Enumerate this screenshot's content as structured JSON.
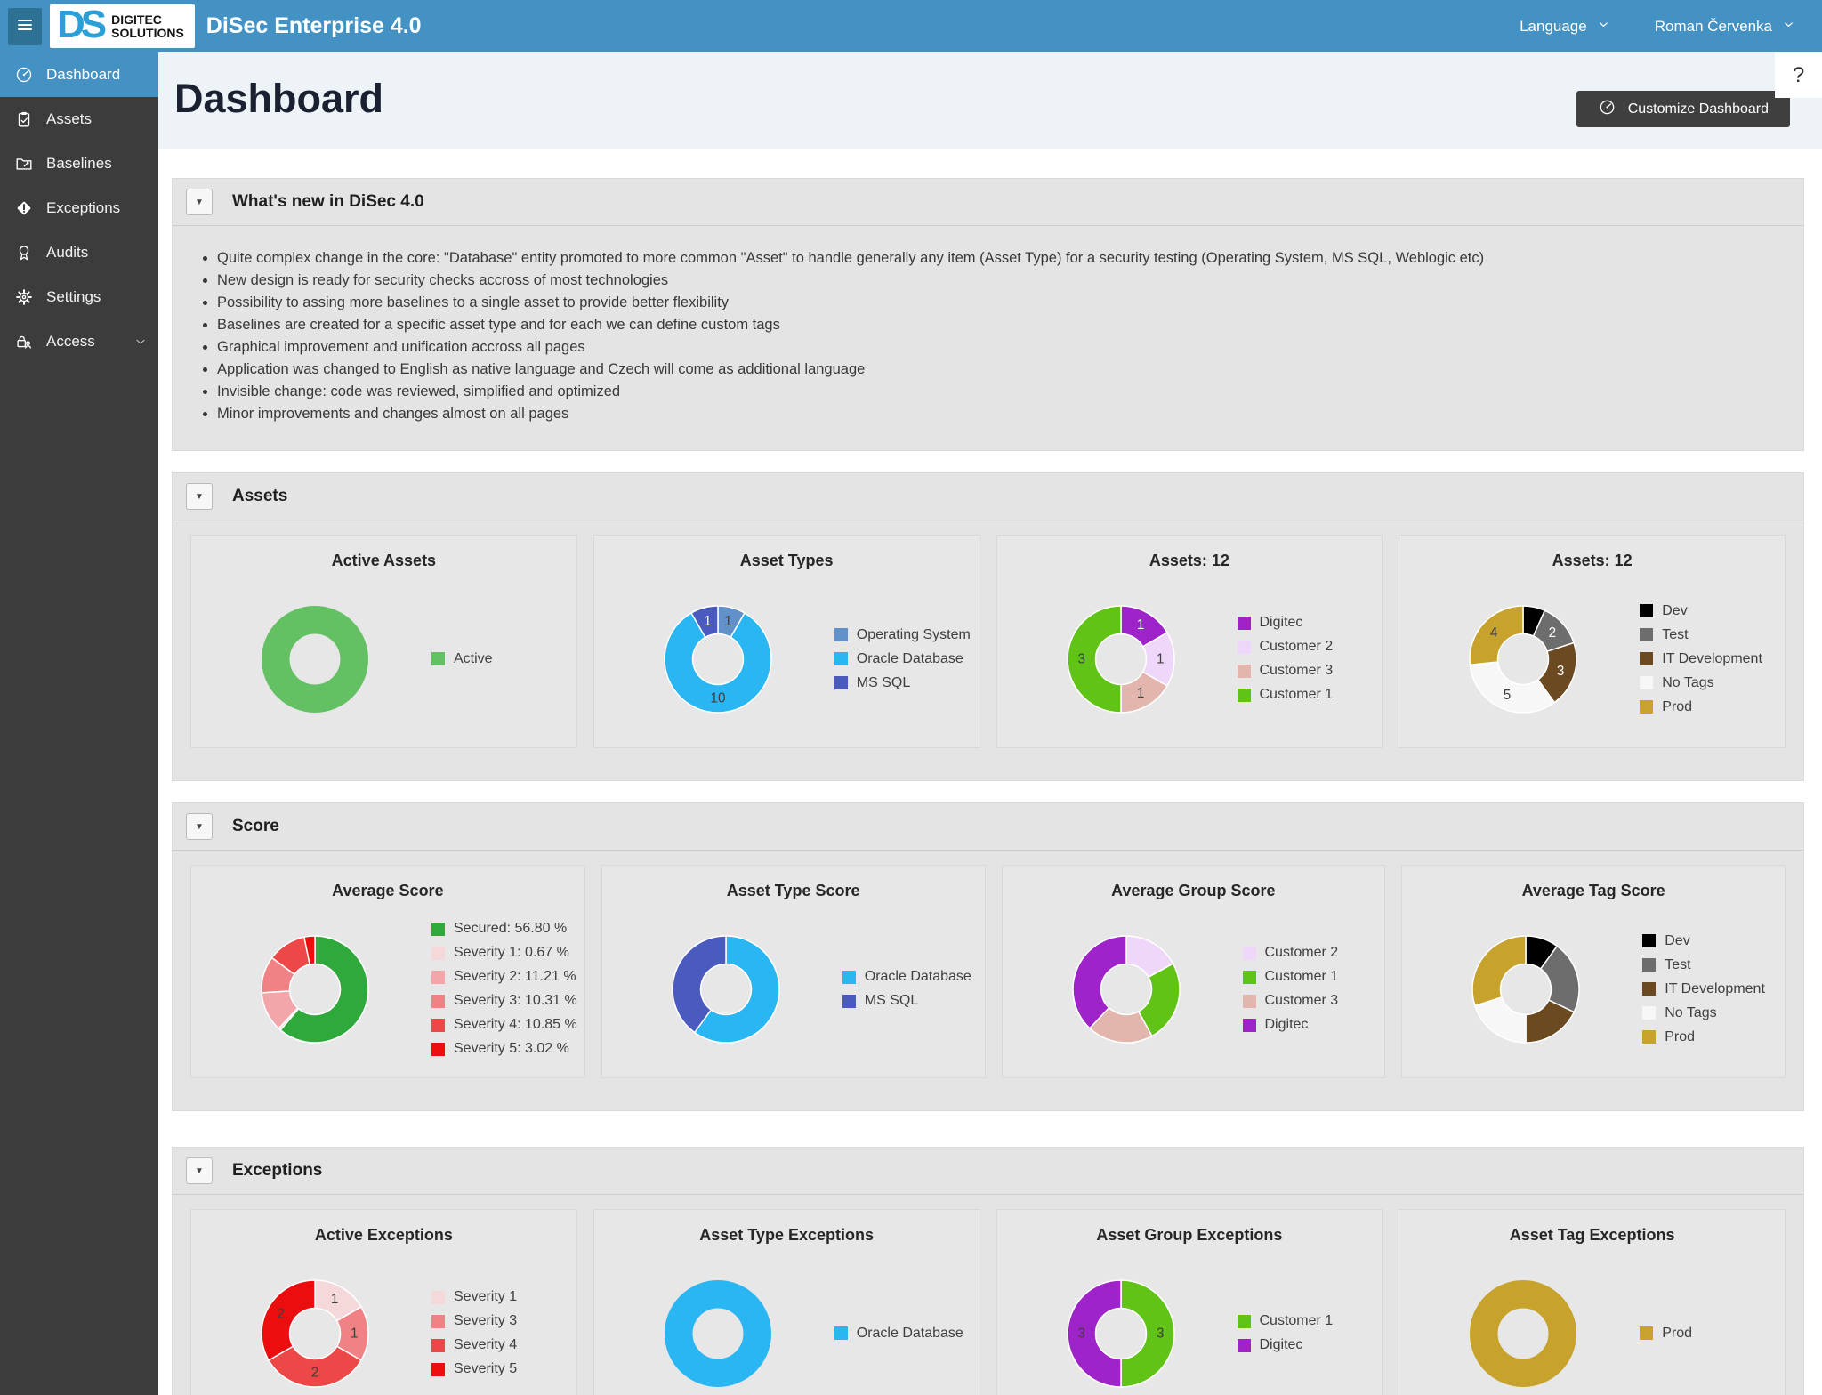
{
  "theme": {
    "topbar_blue": "#4492c3",
    "sidebar_gray": "#3c3c3c",
    "panel_gray": "#e4e4e4",
    "button_dark": "#3f3f3f"
  },
  "topbar": {
    "brand_ds": "DS",
    "brand_line1": "DIGITEC",
    "brand_line2": "SOLUTIONS",
    "app_title": "DiSec Enterprise 4.0",
    "language_label": "Language",
    "user_name": "Roman Červenka"
  },
  "header": {
    "title": "Dashboard",
    "customize_button": "Customize Dashboard",
    "help_glyph": "?"
  },
  "ui": {
    "collapse_glyph": "▼"
  },
  "sidebar": {
    "items": [
      {
        "label": "Dashboard",
        "icon": "gauge",
        "active": true,
        "chevron": false
      },
      {
        "label": "Assets",
        "icon": "clipboard",
        "active": false,
        "chevron": false
      },
      {
        "label": "Baselines",
        "icon": "folder",
        "active": false,
        "chevron": false
      },
      {
        "label": "Exceptions",
        "icon": "diamond",
        "active": false,
        "chevron": false
      },
      {
        "label": "Audits",
        "icon": "award",
        "active": false,
        "chevron": false
      },
      {
        "label": "Settings",
        "icon": "gear",
        "active": false,
        "chevron": false
      },
      {
        "label": "Access",
        "icon": "access",
        "active": false,
        "chevron": true
      }
    ]
  },
  "sections": [
    {
      "id": "whats-new",
      "title": "What's new in DiSec 4.0",
      "bullets": [
        "Quite complex change in the core: \"Database\" entity promoted to more common \"Asset\" to handle generally any item (Asset Type) for a security testing (Operating System, MS SQL, Weblogic etc)",
        "New design is ready for security checks accross of most technologies",
        "Possibility to assing more baselines to a single asset to provide better flexibility",
        "Baselines are created for a specific asset type and for each we can define custom tags",
        "Graphical improvement and unification accross all pages",
        "Application was changed to English as native language and Czech will come as additional language",
        "Invisible change: code was reviewed, simplified and optimized",
        "Minor improvements and changes almost on all pages"
      ]
    },
    {
      "id": "assets",
      "title": "Assets",
      "cards": [
        {
          "title": "Active Assets",
          "chart": 0
        },
        {
          "title": "Asset Types",
          "chart": 1
        },
        {
          "title": "Assets: 12",
          "chart": 2
        },
        {
          "title": "Assets: 12",
          "chart": 3
        }
      ]
    },
    {
      "id": "score",
      "title": "Score",
      "cards": [
        {
          "title": "Average Score",
          "chart": 4
        },
        {
          "title": "Asset Type Score",
          "chart": 5
        },
        {
          "title": "Average Group Score",
          "chart": 6
        },
        {
          "title": "Average Tag Score",
          "chart": 7
        }
      ]
    },
    {
      "id": "exceptions",
      "title": "Exceptions",
      "cards": [
        {
          "title": "Active Exceptions",
          "chart": 8
        },
        {
          "title": "Asset Type Exceptions",
          "chart": 9
        },
        {
          "title": "Asset Group Exceptions",
          "chart": 10
        },
        {
          "title": "Asset Tag Exceptions",
          "chart": 11
        }
      ]
    }
  ],
  "chart_data": [
    {
      "id": "active-assets",
      "type": "donut",
      "title": "Active Assets",
      "segments": [
        {
          "label": "Active",
          "value": 1,
          "color": "#63c063"
        }
      ]
    },
    {
      "id": "asset-types",
      "type": "donut",
      "title": "Asset Types",
      "segments": [
        {
          "label": "Operating System",
          "value": 1,
          "color": "#6191c8",
          "text": "1",
          "text_color": "#3f3f3f"
        },
        {
          "label": "Oracle Database",
          "value": 10,
          "color": "#29b6f2",
          "text": "10",
          "text_color": "#3f3f3f"
        },
        {
          "label": "MS SQL",
          "value": 1,
          "color": "#4a5abf",
          "text": "1",
          "text_color": "#ffffff"
        }
      ]
    },
    {
      "id": "assets-by-group",
      "type": "donut",
      "title": "Assets: 12",
      "segments": [
        {
          "label": "Digitec",
          "value": 1,
          "color": "#9e23c9",
          "text": "1",
          "text_color": "#ffffff"
        },
        {
          "label": "Customer 2",
          "value": 1,
          "color": "#efd7f9",
          "text": "1",
          "text_color": "#3f3f3f"
        },
        {
          "label": "Customer 3",
          "value": 1,
          "color": "#e2b6ac",
          "text": "1",
          "text_color": "#3f3f3f"
        },
        {
          "label": "Customer 1",
          "value": 3,
          "color": "#60c316",
          "text": "3",
          "text_color": "#3f3f3f"
        }
      ]
    },
    {
      "id": "assets-by-tag",
      "type": "donut",
      "title": "Assets: 12",
      "segments": [
        {
          "label": "Dev",
          "value": 1,
          "color": "#000000"
        },
        {
          "label": "Test",
          "value": 2,
          "color": "#6d6d6d",
          "text": "2",
          "text_color": "#ffffff"
        },
        {
          "label": "IT Development",
          "value": 3,
          "color": "#6b4a22",
          "text": "3",
          "text_color": "#ffffff"
        },
        {
          "label": "No Tags",
          "value": 5,
          "color": "#f7f7f7",
          "text": "5",
          "text_color": "#3f3f3f"
        },
        {
          "label": "Prod",
          "value": 4,
          "color": "#c7a22c",
          "text": "4",
          "text_color": "#3f3f3f"
        }
      ]
    },
    {
      "id": "average-score",
      "type": "donut",
      "title": "Average Score",
      "segments": [
        {
          "label": "Secured: 56.80 %",
          "value": 56.8,
          "color": "#2fa93c"
        },
        {
          "label": "Severity 1: 0.67 %",
          "value": 0.67,
          "color": "#f5d8da"
        },
        {
          "label": "Severity 2: 11.21 %",
          "value": 11.21,
          "color": "#f2a6aa"
        },
        {
          "label": "Severity 3: 10.31 %",
          "value": 10.31,
          "color": "#f08184"
        },
        {
          "label": "Severity 4: 10.85 %",
          "value": 10.85,
          "color": "#ed4748"
        },
        {
          "label": "Severity 5: 3.02 %",
          "value": 3.02,
          "color": "#ec0e0e"
        }
      ]
    },
    {
      "id": "asset-type-score",
      "type": "donut",
      "title": "Asset Type Score",
      "segments": [
        {
          "label": "Oracle Database",
          "value": 60,
          "color": "#29b6f2"
        },
        {
          "label": "MS SQL",
          "value": 40,
          "color": "#4a5abf"
        }
      ]
    },
    {
      "id": "average-group-score",
      "type": "donut",
      "title": "Average Group Score",
      "segments": [
        {
          "label": "Customer 2",
          "value": 17,
          "color": "#efd7f9"
        },
        {
          "label": "Customer 1",
          "value": 25,
          "color": "#60c316"
        },
        {
          "label": "Customer 3",
          "value": 20,
          "color": "#e2b6ac"
        },
        {
          "label": "Digitec",
          "value": 38,
          "color": "#9e23c9"
        }
      ]
    },
    {
      "id": "average-tag-score",
      "type": "donut",
      "title": "Average Tag Score",
      "segments": [
        {
          "label": "Dev",
          "value": 10,
          "color": "#000000"
        },
        {
          "label": "Test",
          "value": 22,
          "color": "#6d6d6d"
        },
        {
          "label": "IT Development",
          "value": 18,
          "color": "#6b4a22"
        },
        {
          "label": "No Tags",
          "value": 20,
          "color": "#f7f7f7"
        },
        {
          "label": "Prod",
          "value": 30,
          "color": "#c7a22c"
        }
      ]
    },
    {
      "id": "active-exceptions",
      "type": "donut",
      "title": "Active Exceptions",
      "segments": [
        {
          "label": "Severity 1",
          "value": 1,
          "color": "#f5d8da",
          "text": "1",
          "text_color": "#3f3f3f"
        },
        {
          "label": "Severity 3",
          "value": 1,
          "color": "#f08184",
          "text": "1",
          "text_color": "#3f3f3f"
        },
        {
          "label": "Severity 4",
          "value": 2,
          "color": "#ed4748",
          "text": "2",
          "text_color": "#3f3f3f"
        },
        {
          "label": "Severity 5",
          "value": 2,
          "color": "#ec0e0e",
          "text": "2",
          "text_color": "#3f3f3f"
        }
      ]
    },
    {
      "id": "asset-type-exceptions",
      "type": "donut",
      "title": "Asset Type Exceptions",
      "segments": [
        {
          "label": "Oracle Database",
          "value": 1,
          "color": "#29b6f2"
        }
      ]
    },
    {
      "id": "asset-group-exceptions",
      "type": "donut",
      "title": "Asset Group Exceptions",
      "segments": [
        {
          "label": "Customer 1",
          "value": 3,
          "color": "#60c316",
          "text": "3",
          "text_color": "#3f3f3f"
        },
        {
          "label": "Digitec",
          "value": 3,
          "color": "#9e23c9",
          "text": "3",
          "text_color": "#3f3f3f"
        }
      ]
    },
    {
      "id": "asset-tag-exceptions",
      "type": "donut",
      "title": "Asset Tag Exceptions",
      "segments": [
        {
          "label": "Prod",
          "value": 1,
          "color": "#c7a22c"
        }
      ]
    }
  ]
}
